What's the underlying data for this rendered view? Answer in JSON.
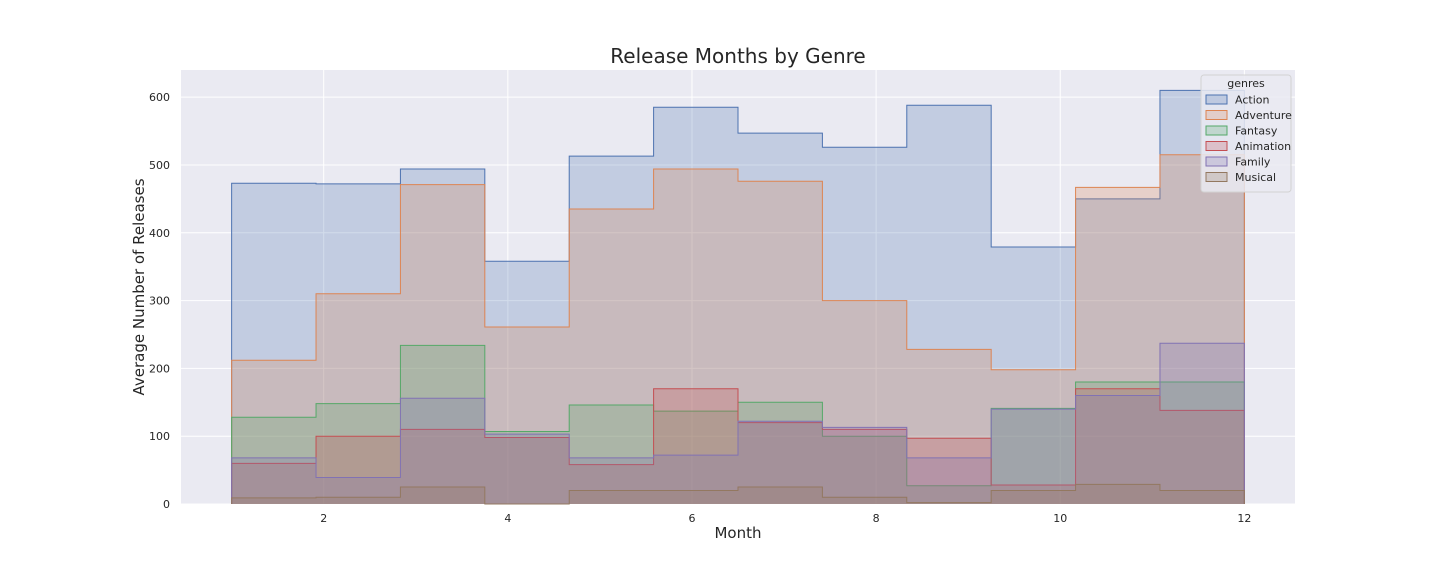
{
  "chart_data": {
    "type": "histogram-step",
    "title": "Release Months by Genre",
    "xlabel": "Month",
    "ylabel": "Average Number of Releases",
    "xlim": [
      0.45,
      12.55
    ],
    "ylim": [
      0,
      640
    ],
    "x_ticks": [
      2,
      4,
      6,
      8,
      10,
      12
    ],
    "y_ticks": [
      0,
      100,
      200,
      300,
      400,
      500,
      600
    ],
    "grid": true,
    "legend": {
      "title": "genres",
      "placement": "top-right"
    },
    "bin_edges": [
      1,
      1.9167,
      2.8333,
      3.75,
      4.6667,
      5.5833,
      6.5,
      7.4167,
      8.3333,
      9.25,
      10.1667,
      11.0833,
      12
    ],
    "series": [
      {
        "name": "Action",
        "color": "#4c72b0",
        "values": [
          473,
          472,
          494,
          358,
          513,
          585,
          547,
          526,
          588,
          379,
          450,
          610
        ]
      },
      {
        "name": "Adventure",
        "color": "#dd8452",
        "values": [
          212,
          310,
          471,
          261,
          435,
          494,
          476,
          300,
          228,
          198,
          467,
          515
        ]
      },
      {
        "name": "Fantasy",
        "color": "#55a868",
        "values": [
          128,
          148,
          234,
          107,
          146,
          137,
          150,
          100,
          27,
          141,
          180,
          180
        ]
      },
      {
        "name": "Animation",
        "color": "#c44e52",
        "values": [
          60,
          100,
          110,
          98,
          58,
          170,
          120,
          110,
          97,
          28,
          170,
          138
        ]
      },
      {
        "name": "Family",
        "color": "#8172b3",
        "values": [
          68,
          39,
          156,
          103,
          68,
          72,
          122,
          113,
          68,
          140,
          160,
          237
        ]
      },
      {
        "name": "Musical",
        "color": "#937860",
        "values": [
          9,
          10,
          25,
          0,
          20,
          20,
          25,
          10,
          2,
          20,
          29,
          20
        ]
      }
    ]
  }
}
